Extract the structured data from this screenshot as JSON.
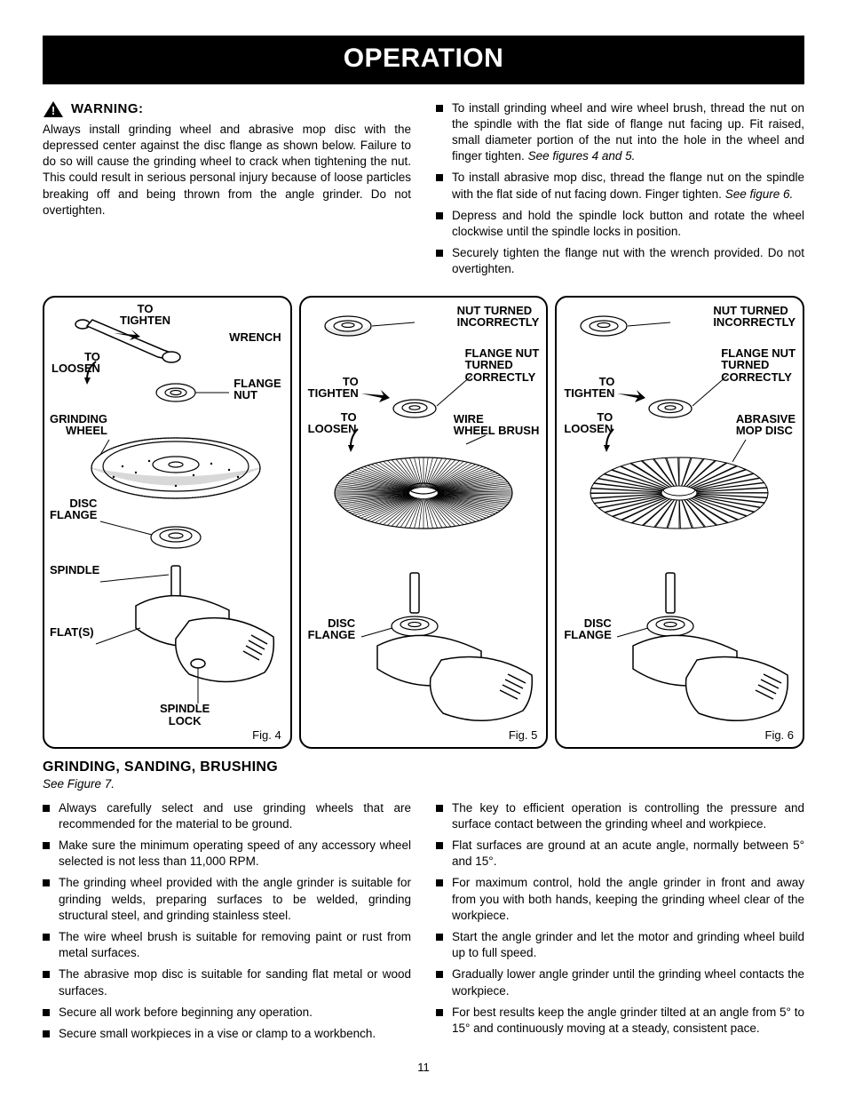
{
  "banner": "OPERATION",
  "warning": {
    "label": "WARNING:",
    "body": "Always install grinding wheel and abrasive mop disc with the depressed center against the disc flange as shown below. Failure to do so will cause the grinding wheel to crack when tightening the nut. This could result in serious personal injury because of loose particles breaking off and being thrown from the angle grinder. Do not overtighten."
  },
  "top_right_bullets": [
    {
      "text": "To install grinding wheel and wire wheel brush, thread the nut on the spindle with the flat side of flange nut facing up. Fit raised, small diameter portion of the nut into the hole in the wheel and finger tighten.",
      "see": "See figures 4 and 5."
    },
    {
      "text": "To install abrasive mop disc, thread the flange nut on the spindle with the flat side of nut facing down. Finger tighten.",
      "see": "See figure 6."
    },
    {
      "text": "Depress and hold the spindle lock button and rotate the wheel clockwise until the spindle locks in position."
    },
    {
      "text": "Securely tighten the flange nut with the wrench provided. Do not overtighten."
    }
  ],
  "figures": {
    "fig4": {
      "label": "Fig. 4",
      "callouts": {
        "tighten": "TO\nTIGHTEN",
        "loosen": "TO\nLOOSEN",
        "wrench": "WRENCH",
        "flange_nut": "FLANGE\nNUT",
        "grinding_wheel": "GRINDING\nWHEEL",
        "disc_flange": "DISC\nFLANGE",
        "spindle": "SPINDLE",
        "flats": "FLAT(S)",
        "spindle_lock": "SPINDLE\nLOCK"
      }
    },
    "fig5": {
      "label": "Fig. 5",
      "callouts": {
        "nut_incorrect": "NUT TURNED\nINCORRECTLY",
        "flange_correct": "FLANGE NUT\nTURNED\nCORRECTLY",
        "tighten": "TO\nTIGHTEN",
        "loosen": "TO\nLOOSEN",
        "wire_brush": "WIRE\nWHEEL BRUSH",
        "disc_flange": "DISC\nFLANGE"
      }
    },
    "fig6": {
      "label": "Fig. 6",
      "callouts": {
        "nut_incorrect": "NUT TURNED\nINCORRECTLY",
        "flange_correct": "FLANGE NUT\nTURNED\nCORRECTLY",
        "tighten": "TO\nTIGHTEN",
        "loosen": "TO\nLOOSEN",
        "abrasive": "ABRASIVE\nMOP DISC",
        "disc_flange": "DISC\nFLANGE"
      }
    }
  },
  "section2": {
    "heading": "GRINDING, SANDING, BRUSHING",
    "see": "See Figure 7.",
    "left": [
      "Always carefully select and use grinding wheels that are recommended for the material to be ground.",
      "Make sure the minimum operating speed of any accessory wheel selected is not less than 11,000 RPM.",
      "The grinding wheel provided with the angle grinder is suitable for grinding welds, preparing surfaces to be welded, grinding structural steel, and grinding stainless steel.",
      "The wire wheel brush is suitable for removing paint or rust from metal surfaces.",
      "The abrasive mop disc is suitable for sanding flat metal or wood surfaces.",
      "Secure all work before beginning any operation.",
      "Secure small workpieces in a vise or clamp to a workbench."
    ],
    "right": [
      "The key to efficient operation is controlling the pressure and surface contact between the grinding wheel and workpiece.",
      "Flat surfaces are ground at an acute angle, normally between 5° and 15°.",
      "For maximum control, hold the angle grinder in front and away from you with both hands, keeping the grinding wheel clear of the workpiece.",
      "Start the angle grinder and let the motor and grinding wheel build up to full speed.",
      "Gradually lower angle grinder until the grinding wheel contacts the workpiece.",
      "For best results keep the angle grinder tilted at an angle from 5° to 15° and continuously moving at a steady, consistent pace."
    ]
  },
  "page_number": "11",
  "diagram": {
    "grinder_fill": "#ffffff",
    "stroke": "#000000",
    "stroke_width": 1.5
  }
}
